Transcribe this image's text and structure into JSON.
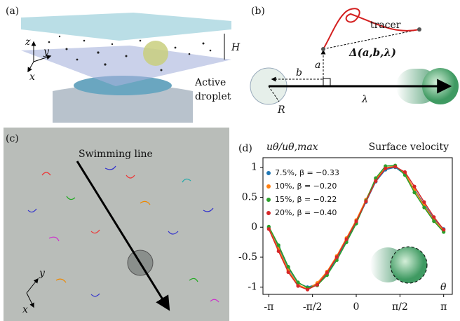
{
  "panel_a": {
    "label": "(a)",
    "axis_z": "z",
    "axis_y": "y",
    "axis_x": "x",
    "height": "H",
    "caption": [
      "Active",
      "droplet"
    ]
  },
  "panel_b": {
    "label": "(b)",
    "tracer": "tracer",
    "displacement": "Δ(a,b,λ)",
    "a": "a",
    "b": "b",
    "radius": "R",
    "lambda": "λ"
  },
  "panel_c": {
    "label": "(c)",
    "line_label": "Swimming line",
    "axis_y": "y",
    "axis_x": "x"
  },
  "chart_data": {
    "type": "scatter",
    "panel_label": "(d)",
    "title": "Surface velocity",
    "ylabel": "uθ/uθ,max",
    "xlabel": "θ",
    "x": [
      -3.14,
      -2.79,
      -2.44,
      -2.09,
      -1.75,
      -1.4,
      -1.05,
      -0.7,
      -0.35,
      0,
      0.35,
      0.7,
      1.05,
      1.4,
      1.75,
      2.09,
      2.44,
      2.79,
      3.14
    ],
    "series": [
      {
        "name": "7.5%, β = −0.33",
        "color": "#1f77b4",
        "values": [
          0,
          -0.33,
          -0.68,
          -0.93,
          -1.0,
          -0.95,
          -0.78,
          -0.52,
          -0.22,
          0.08,
          0.42,
          0.76,
          0.96,
          1.0,
          0.88,
          0.63,
          0.38,
          0.14,
          -0.03
        ]
      },
      {
        "name": "10%, β = −0.20",
        "color": "#ff7f0e",
        "values": [
          -0.02,
          -0.36,
          -0.72,
          -0.96,
          -1.03,
          -0.93,
          -0.74,
          -0.48,
          -0.18,
          0.12,
          0.46,
          0.8,
          0.99,
          1.02,
          0.9,
          0.62,
          0.36,
          0.12,
          -0.06
        ]
      },
      {
        "name": "15%, β = −0.22",
        "color": "#2ca02c",
        "values": [
          0.01,
          -0.3,
          -0.66,
          -0.92,
          -1.01,
          -0.97,
          -0.8,
          -0.55,
          -0.25,
          0.06,
          0.44,
          0.82,
          1.02,
          1.03,
          0.87,
          0.58,
          0.33,
          0.1,
          -0.08
        ]
      },
      {
        "name": "20%, β = −0.40",
        "color": "#d62728",
        "values": [
          -0.03,
          -0.4,
          -0.75,
          -0.98,
          -1.04,
          -0.96,
          -0.76,
          -0.5,
          -0.2,
          0.1,
          0.43,
          0.77,
          0.98,
          1.01,
          0.92,
          0.68,
          0.42,
          0.17,
          -0.04
        ]
      }
    ],
    "xlim": [
      -3.35,
      3.45
    ],
    "ylim": [
      -1.12,
      1.16
    ],
    "xticks": [
      {
        "value": -3.14,
        "label": "-π"
      },
      {
        "value": -1.57,
        "label": "-π/2"
      },
      0,
      {
        "value": 1.57,
        "label": "π/2"
      },
      {
        "value": 3.14,
        "label": "π"
      }
    ],
    "yticks": [
      -1,
      -0.5,
      0,
      0.5,
      1
    ],
    "legend": "upper left"
  }
}
